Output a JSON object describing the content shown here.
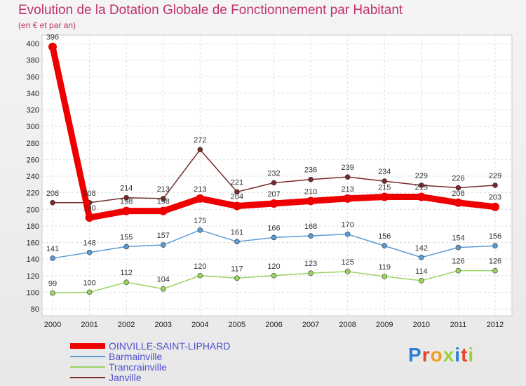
{
  "title": "Evolution de la Dotation Globale de Fonctionnement par Habitant",
  "subtitle": "(en € et par an)",
  "logo": "Proxiti",
  "chart_data": {
    "type": "line",
    "title": "Evolution de la Dotation Globale de Fonctionnement par Habitant",
    "ylabel": "(en € et par an)",
    "xlabel": "",
    "ylim": [
      80,
      400
    ],
    "yticks": [
      80,
      100,
      120,
      140,
      160,
      180,
      200,
      220,
      240,
      260,
      280,
      300,
      320,
      340,
      360,
      380,
      400
    ],
    "categories": [
      "2000",
      "2001",
      "2002",
      "2003",
      "2004",
      "2005",
      "2006",
      "2007",
      "2008",
      "2009",
      "2010",
      "2011",
      "2012"
    ],
    "grid": true,
    "legend": "bottom-left",
    "series": [
      {
        "name": "Janville",
        "color": "#7a2a2a",
        "values": [
          208,
          208,
          214,
          213,
          272,
          221,
          232,
          236,
          239,
          234,
          229,
          226,
          229
        ]
      },
      {
        "name": "Trancrainville",
        "color": "#9ad460",
        "values": [
          99,
          100,
          112,
          104,
          120,
          117,
          120,
          123,
          125,
          119,
          114,
          126,
          126
        ]
      },
      {
        "name": "Barmainville",
        "color": "#5b9bd5",
        "values": [
          141,
          148,
          155,
          157,
          175,
          161,
          166,
          168,
          170,
          156,
          142,
          154,
          156
        ]
      },
      {
        "name": "OINVILLE-SAINT-LIPHARD",
        "color": "#ee0000",
        "values": [
          396,
          190,
          198,
          198,
          213,
          204,
          207,
          210,
          213,
          215,
          215,
          208,
          203
        ]
      }
    ],
    "legend_order": [
      "OINVILLE-SAINT-LIPHARD",
      "Barmainville",
      "Trancrainville",
      "Janville"
    ]
  }
}
